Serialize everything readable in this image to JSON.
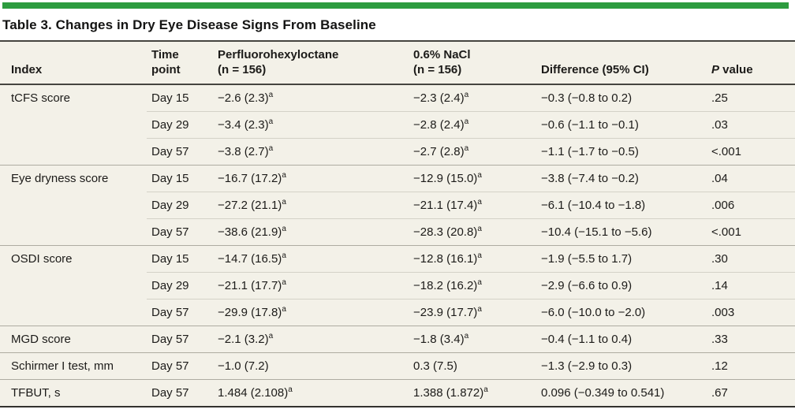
{
  "title": "Table 3. Changes in Dry Eye Disease Signs From Baseline",
  "accent_color": "#2d9c3f",
  "header_bg": "#f3f1e8",
  "footnote_marker": "a",
  "table": {
    "columns": [
      {
        "label": "Index"
      },
      {
        "line1": "Time",
        "line2": "point"
      },
      {
        "line1": "Perfluorohexyloctane",
        "line2": "(n = 156)"
      },
      {
        "line1": "0.6% NaCl",
        "line2": "(n = 156)"
      },
      {
        "label": "Difference (95% CI)"
      },
      {
        "label": "P value"
      }
    ],
    "rows": [
      {
        "group_start": true,
        "index": "tCFS score",
        "time": "Day 15",
        "pfhx": "−2.6 (2.3)",
        "pfhx_sup": "a",
        "nacl": "−2.3 (2.4)",
        "nacl_sup": "a",
        "diff": "−0.3 (−0.8 to 0.2)",
        "p": ".25"
      },
      {
        "group_start": false,
        "index": "",
        "time": "Day 29",
        "pfhx": "−3.4 (2.3)",
        "pfhx_sup": "a",
        "nacl": "−2.8 (2.4)",
        "nacl_sup": "a",
        "diff": "−0.6 (−1.1 to −0.1)",
        "p": ".03"
      },
      {
        "group_start": false,
        "index": "",
        "time": "Day 57",
        "pfhx": "−3.8 (2.7)",
        "pfhx_sup": "a",
        "nacl": "−2.7 (2.8)",
        "nacl_sup": "a",
        "diff": "−1.1 (−1.7 to −0.5)",
        "p": "<.001"
      },
      {
        "group_start": true,
        "index": "Eye dryness score",
        "time": "Day 15",
        "pfhx": "−16.7 (17.2)",
        "pfhx_sup": "a",
        "nacl": "−12.9 (15.0)",
        "nacl_sup": "a",
        "diff": "−3.8 (−7.4 to −0.2)",
        "p": ".04"
      },
      {
        "group_start": false,
        "index": "",
        "time": "Day 29",
        "pfhx": "−27.2 (21.1)",
        "pfhx_sup": "a",
        "nacl": "−21.1 (17.4)",
        "nacl_sup": "a",
        "diff": "−6.1 (−10.4 to −1.8)",
        "p": ".006"
      },
      {
        "group_start": false,
        "index": "",
        "time": "Day 57",
        "pfhx": "−38.6 (21.9)",
        "pfhx_sup": "a",
        "nacl": "−28.3 (20.8)",
        "nacl_sup": "a",
        "diff": "−10.4 (−15.1 to −5.6)",
        "p": "<.001"
      },
      {
        "group_start": true,
        "index": "OSDI score",
        "time": "Day 15",
        "pfhx": "−14.7 (16.5)",
        "pfhx_sup": "a",
        "nacl": "−12.8 (16.1)",
        "nacl_sup": "a",
        "diff": "−1.9 (−5.5 to 1.7)",
        "p": ".30"
      },
      {
        "group_start": false,
        "index": "",
        "time": "Day 29",
        "pfhx": "−21.1 (17.7)",
        "pfhx_sup": "a",
        "nacl": "−18.2 (16.2)",
        "nacl_sup": "a",
        "diff": "−2.9 (−6.6 to 0.9)",
        "p": ".14"
      },
      {
        "group_start": false,
        "index": "",
        "time": "Day 57",
        "pfhx": "−29.9 (17.8)",
        "pfhx_sup": "a",
        "nacl": "−23.9 (17.7)",
        "nacl_sup": "a",
        "diff": "−6.0 (−10.0 to −2.0)",
        "p": ".003"
      },
      {
        "group_start": true,
        "index": "MGD score",
        "time": "Day 57",
        "pfhx": "−2.1 (3.2)",
        "pfhx_sup": "a",
        "nacl": "−1.8 (3.4)",
        "nacl_sup": "a",
        "diff": "−0.4 (−1.1 to 0.4)",
        "p": ".33"
      },
      {
        "group_start": true,
        "index": "Schirmer I test, mm",
        "time": "Day 57",
        "pfhx": "−1.0 (7.2)",
        "nacl": "0.3 (7.5)",
        "diff": "−1.3 (−2.9 to 0.3)",
        "p": ".12"
      },
      {
        "group_start": true,
        "index": "TFBUT, s",
        "time": "Day 57",
        "pfhx": "1.484 (2.108)",
        "pfhx_sup": "a",
        "nacl": "1.388 (1.872)",
        "nacl_sup": "a",
        "diff": "0.096 (−0.349 to 0.541)",
        "p": ".67"
      }
    ]
  }
}
